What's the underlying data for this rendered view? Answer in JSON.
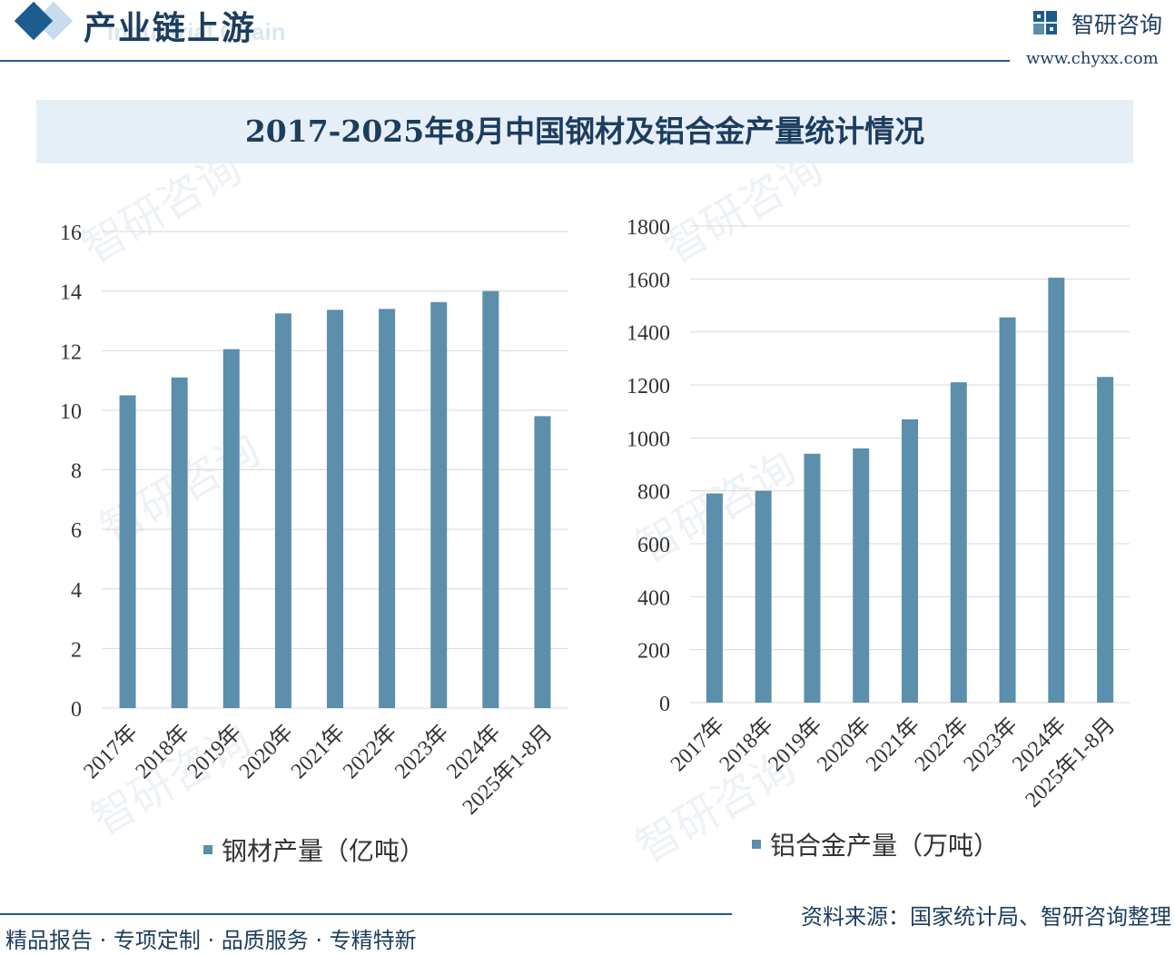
{
  "header": {
    "section_title": "产业链上游",
    "section_subtitle": "Industrial Chain",
    "brand_name": "智研咨询",
    "brand_url": "www.chyxx.com"
  },
  "chart_title": "2017-2025年8月中国钢材及铝合金产量统计情况",
  "watermark": "智研咨询",
  "colors": {
    "bar": "#5b8fab",
    "accent": "#1d5c8f",
    "grid": "#d9d9d9"
  },
  "chart_data": [
    {
      "type": "bar",
      "categories": [
        "2017年",
        "2018年",
        "2019年",
        "2020年",
        "2021年",
        "2022年",
        "2023年",
        "2024年",
        "2025年1-8月"
      ],
      "values": [
        10.5,
        11.1,
        12.05,
        13.25,
        13.37,
        13.4,
        13.63,
        14.0,
        9.8
      ],
      "ylim": [
        0,
        16
      ],
      "yticks": [
        "0",
        "2",
        "4",
        "6",
        "8",
        "10",
        "12",
        "14",
        "16"
      ],
      "legend": "钢材产量（亿吨）",
      "grid": true,
      "legend_position": "bottom"
    },
    {
      "type": "bar",
      "categories": [
        "2017年",
        "2018年",
        "2019年",
        "2020年",
        "2021年",
        "2022年",
        "2023年",
        "2024年",
        "2025年1-8月"
      ],
      "values": [
        790,
        800,
        940,
        960,
        1070,
        1210,
        1455,
        1605,
        1230
      ],
      "ylim": [
        0,
        1800
      ],
      "yticks": [
        "0",
        "200",
        "400",
        "600",
        "800",
        "1000",
        "1200",
        "1400",
        "1600",
        "1800"
      ],
      "legend": "铝合金产量（万吨）",
      "grid": true,
      "legend_position": "bottom"
    }
  ],
  "footer": {
    "slogan": "精品报告 · 专项定制 · 品质服务 · 专精特新",
    "source": "资料来源：国家统计局、智研咨询整理"
  }
}
